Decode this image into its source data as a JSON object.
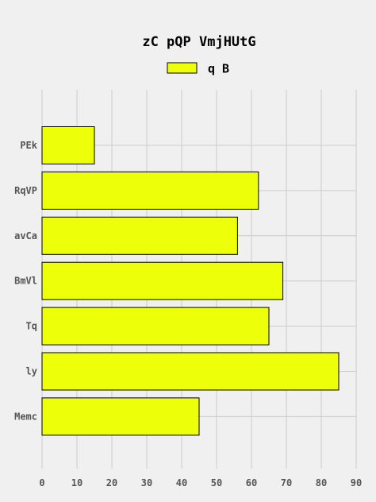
{
  "chart_data": {
    "type": "bar",
    "orientation": "horizontal",
    "title": "zC pQP VmjHUtG",
    "categories": [
      "PEk",
      "RqVP",
      "avCa",
      "BmVl",
      "Tq",
      "ly",
      "Memc"
    ],
    "series": [
      {
        "name": "q B",
        "values": [
          15,
          62,
          56,
          69,
          65,
          85,
          45
        ],
        "color": "#eeff0a"
      }
    ],
    "xlim": [
      0,
      90
    ],
    "xticks": [
      0,
      10,
      20,
      30,
      40,
      50,
      60,
      70,
      80,
      90
    ],
    "xlabel": "",
    "ylabel": "",
    "grid": true,
    "legend": "top-center",
    "colors": {
      "background": "#f0f0f0",
      "bar": "#eeff0a",
      "bar_edge": "#000000",
      "grid": "#cbcbcb"
    }
  }
}
